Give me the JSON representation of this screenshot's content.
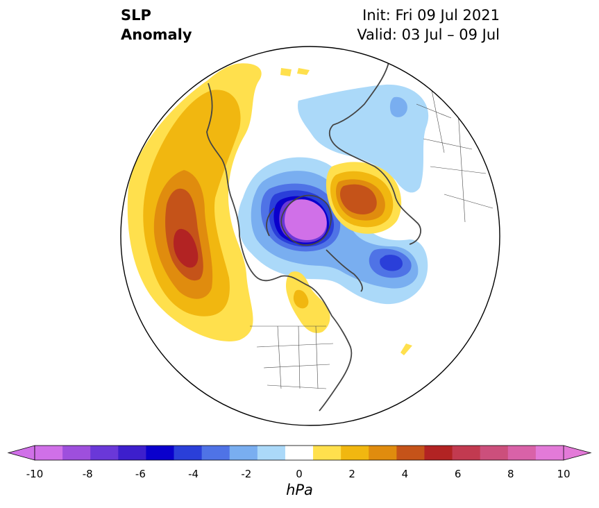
{
  "title": {
    "left_line1": "SLP",
    "left_line2": "Anomaly",
    "right_line1": "Init: Fri 09 Jul 2021",
    "right_line2": "Valid: 03 Jul – 09 Jul"
  },
  "map": {
    "projection": "north-polar-stereographic",
    "variable": "sea level pressure anomaly"
  },
  "colorbar": {
    "unit_label": "hPa",
    "ticks": [
      "-10",
      "-8",
      "-6",
      "-4",
      "-2",
      "0",
      "2",
      "4",
      "6",
      "8",
      "10"
    ],
    "levels": [
      -10,
      -9,
      -8,
      -7,
      -6,
      -5,
      -4,
      -3,
      -2,
      -1,
      1,
      2,
      3,
      4,
      5,
      6,
      7,
      8,
      9,
      10
    ],
    "colors": [
      "#d070e8",
      "#9e4fdd",
      "#6a38d8",
      "#3d1fcc",
      "#0a00cc",
      "#2a3fd9",
      "#4f73e6",
      "#79aef0",
      "#abd9f9",
      "#ffffff",
      "#ffe04d",
      "#f1b710",
      "#e08c0e",
      "#c55319",
      "#b22323",
      "#c23a50",
      "#cc4f7c",
      "#d962a8",
      "#e37ad8"
    ]
  }
}
